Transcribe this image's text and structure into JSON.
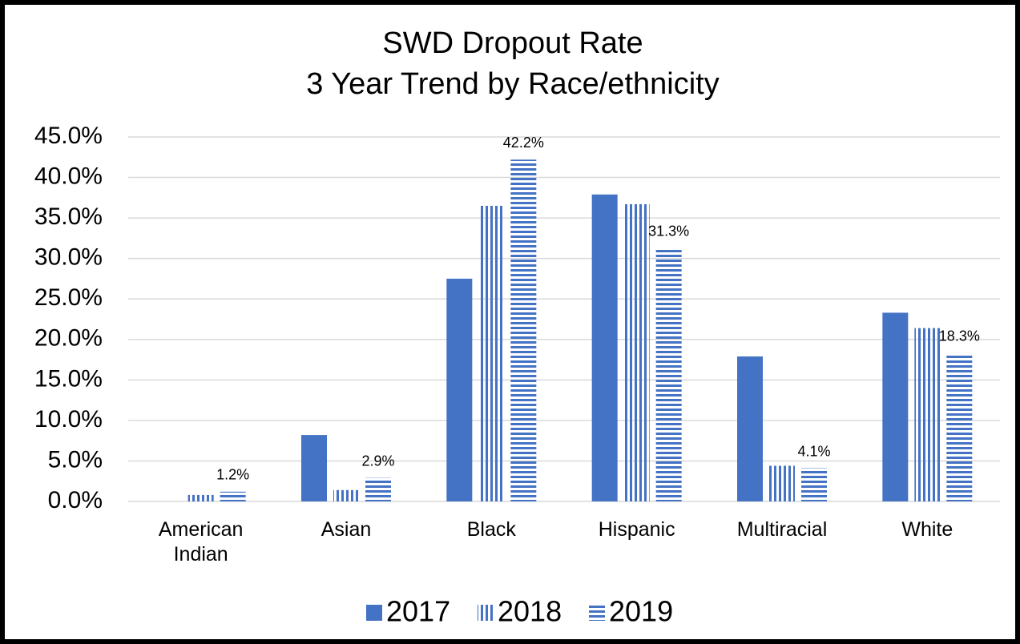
{
  "chart_data": {
    "type": "bar",
    "title": "SWD Dropout Rate",
    "subtitle": "3 Year Trend by Race/ethnicity",
    "categories": [
      "American Indian",
      "Asian",
      "Black",
      "Hispanic",
      "Multiracial",
      "White"
    ],
    "series": [
      {
        "name": "2017",
        "color": "#4472c4",
        "pattern": "solid",
        "values": [
          0,
          8.2,
          27.5,
          37.9,
          17.9,
          23.3
        ]
      },
      {
        "name": "2018",
        "color": "#4472c4",
        "pattern": "vertical",
        "values": [
          0.8,
          1.4,
          36.5,
          36.7,
          4.4,
          21.4
        ]
      },
      {
        "name": "2019",
        "color": "#4472c4",
        "pattern": "horizontal",
        "values": [
          1.2,
          2.9,
          42.2,
          31.3,
          4.1,
          18.3
        ],
        "value_labels": [
          "1.2%",
          "2.9%",
          "42.2%",
          "31.3%",
          "4.1%",
          "18.3%"
        ]
      }
    ],
    "ylim": [
      0,
      45
    ],
    "yticks": [
      {
        "value": 0,
        "label": "0.0%"
      },
      {
        "value": 5,
        "label": "5.0%"
      },
      {
        "value": 10,
        "label": "10.0%"
      },
      {
        "value": 15,
        "label": "15.0%"
      },
      {
        "value": 20,
        "label": "20.0%"
      },
      {
        "value": 25,
        "label": "25.0%"
      },
      {
        "value": 30,
        "label": "30.0%"
      },
      {
        "value": 35,
        "label": "35.0%"
      },
      {
        "value": 40,
        "label": "40.0%"
      },
      {
        "value": 45,
        "label": "45.0%"
      }
    ],
    "grid": true,
    "legend": "bottom"
  }
}
